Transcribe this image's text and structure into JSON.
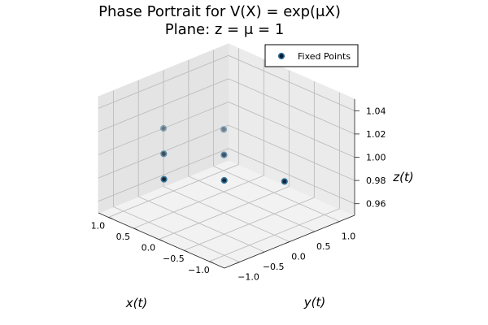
{
  "chart_data": {
    "type": "scatter",
    "title": "Phase Portrait for V(X) = exp(μX)",
    "subtitle": "Plane: z = μ = 1",
    "xlabel": "x(t)",
    "ylabel": "y(t)",
    "zlabel": "z(t)",
    "projection": "3d",
    "xlim": [
      -1.3,
      1.2
    ],
    "ylim": [
      -1.3,
      1.3
    ],
    "zlim": [
      0.95,
      1.05
    ],
    "x_ticks": [
      "−1.0",
      "−0.5",
      "0.0",
      "0.5",
      "1.0"
    ],
    "x_tick_values": [
      -1.0,
      -0.5,
      0.0,
      0.5,
      1.0
    ],
    "y_ticks": [
      "−1.0",
      "−0.5",
      "0.0",
      "0.5",
      "1.0"
    ],
    "y_tick_values": [
      -1.0,
      -0.5,
      0.0,
      0.5,
      1.0
    ],
    "z_ticks": [
      "0.96",
      "0.98",
      "1.00",
      "1.02",
      "1.04"
    ],
    "z_tick_values": [
      0.96,
      0.98,
      1.0,
      1.02,
      1.04
    ],
    "grid": true,
    "legend_position": "top-right",
    "series": [
      {
        "name": "Fixed Points",
        "color": "#1f3b5c",
        "points": [
          {
            "x": -1.2,
            "y": 0.0,
            "z": 1.0
          },
          {
            "x": -0.6,
            "y": -0.6,
            "z": 1.0
          },
          {
            "x": 0.0,
            "y": -1.2,
            "z": 1.0
          },
          {
            "x": 0.0,
            "y": 0.0,
            "z": 1.0
          },
          {
            "x": 0.6,
            "y": 0.6,
            "z": 1.0
          },
          {
            "x": 0.6,
            "y": -0.6,
            "z": 1.0
          },
          {
            "x": 1.2,
            "y": 0.0,
            "z": 1.0
          }
        ]
      }
    ]
  }
}
